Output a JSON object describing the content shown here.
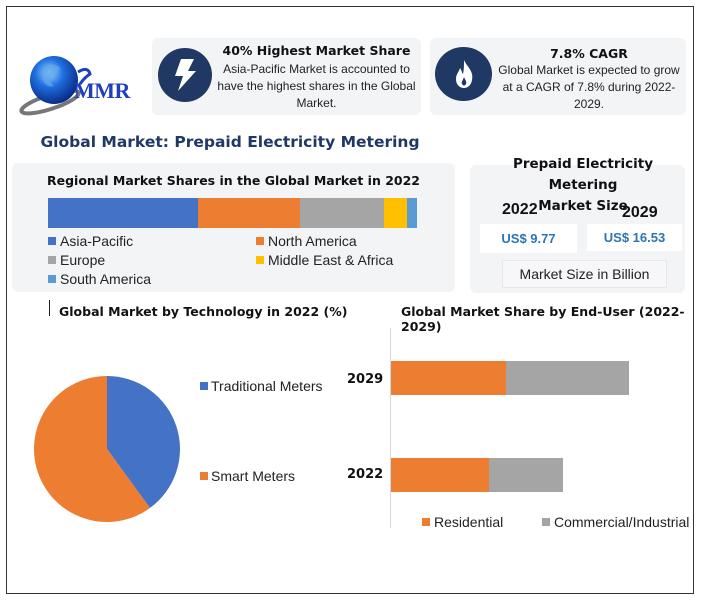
{
  "logo": {
    "text": "MMR"
  },
  "highlights": [
    {
      "icon": "lightning-bolt-icon",
      "title": "40% Highest Market Share",
      "description": "Asia-Pacific Market is accounted to have the highest shares in the Global Market."
    },
    {
      "icon": "flame-icon",
      "title": "7.8% CAGR",
      "description": "Global Market is expected to grow at a CAGR of 7.8% during 2022-2029."
    }
  ],
  "page_title": "Global Market: Prepaid Electricity Metering",
  "colors": {
    "navy": "#1f3864",
    "blue": "#4472c4",
    "orange": "#ed7d31",
    "gray": "#a5a5a5",
    "yellow": "#ffc000",
    "light_blue": "#5b9bd5",
    "value_blue": "#2e75b6"
  },
  "market_size": {
    "title_line1": "Prepaid Electricity Metering",
    "title_line2": "Market Size",
    "year_2022": "2022",
    "year_2029": "2029",
    "value_2022": "US$ 9.77",
    "value_2029": "US$ 16.53",
    "unit_label": "Market Size in Billion"
  },
  "chart_data": [
    {
      "type": "bar",
      "orientation": "horizontal-stacked-100",
      "title": "Regional Market Shares in the Global Market in 2022",
      "series": [
        {
          "name": "Asia-Pacific",
          "value": 40.7,
          "color": "#4472c4"
        },
        {
          "name": "North America",
          "value": 27.6,
          "color": "#ed7d31"
        },
        {
          "name": "Europe",
          "value": 22.8,
          "color": "#a5a5a5"
        },
        {
          "name": "Middle East & Africa",
          "value": 6.2,
          "color": "#ffc000"
        },
        {
          "name": "South America",
          "value": 2.7,
          "color": "#5b9bd5"
        }
      ],
      "legend": "bottom",
      "unit": "%"
    },
    {
      "type": "pie",
      "title": "Global Market by Technology in 2022 (%)",
      "slices": [
        {
          "name": "Traditional Meters",
          "value": 40,
          "color": "#4472c4"
        },
        {
          "name": "Smart Meters",
          "value": 60,
          "color": "#ed7d31"
        }
      ],
      "legend": "right"
    },
    {
      "type": "bar",
      "orientation": "horizontal-stacked",
      "title": "Global Market Share by End-User (2022-2029)",
      "categories": [
        "2029",
        "2022"
      ],
      "series": [
        {
          "name": "Residential",
          "values": [
            115,
            98
          ],
          "color": "#ed7d31"
        },
        {
          "name": "Commercial/Industrial",
          "values": [
            123,
            74
          ],
          "color": "#a5a5a5"
        }
      ],
      "xlim": [
        0,
        290
      ],
      "axis_labels_shown": false,
      "legend": "bottom"
    }
  ]
}
